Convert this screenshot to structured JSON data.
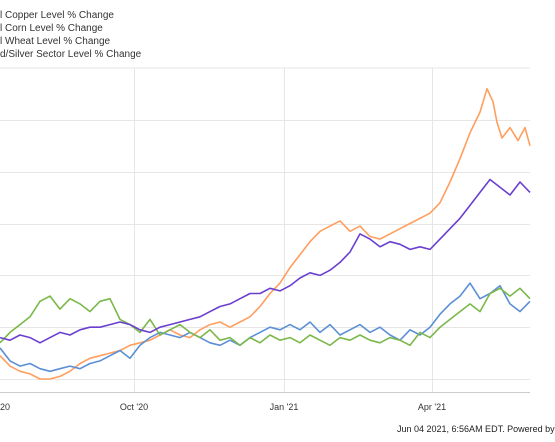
{
  "chart_data": {
    "type": "line",
    "x_ticks": [
      "20",
      "Oct '20",
      "Jan '21",
      "Apr '21"
    ],
    "series": [
      {
        "name": "l Copper Level % Change",
        "color": "#ff9e5e",
        "points": [
          [
            0,
            -6
          ],
          [
            10,
            -10
          ],
          [
            20,
            -12
          ],
          [
            30,
            -13
          ],
          [
            40,
            -15
          ],
          [
            50,
            -15
          ],
          [
            60,
            -14
          ],
          [
            70,
            -12
          ],
          [
            80,
            -9
          ],
          [
            90,
            -7
          ],
          [
            100,
            -6
          ],
          [
            110,
            -5
          ],
          [
            120,
            -4
          ],
          [
            130,
            -2
          ],
          [
            140,
            -1
          ],
          [
            150,
            0
          ],
          [
            160,
            2
          ],
          [
            170,
            4
          ],
          [
            180,
            2
          ],
          [
            190,
            1
          ],
          [
            200,
            4
          ],
          [
            210,
            6
          ],
          [
            220,
            7
          ],
          [
            230,
            5
          ],
          [
            240,
            7
          ],
          [
            250,
            9
          ],
          [
            260,
            13
          ],
          [
            270,
            18
          ],
          [
            280,
            22
          ],
          [
            290,
            28
          ],
          [
            300,
            33
          ],
          [
            310,
            38
          ],
          [
            320,
            42
          ],
          [
            330,
            44
          ],
          [
            340,
            46
          ],
          [
            350,
            42
          ],
          [
            360,
            44
          ],
          [
            370,
            40
          ],
          [
            380,
            39
          ],
          [
            390,
            41
          ],
          [
            400,
            43
          ],
          [
            410,
            45
          ],
          [
            420,
            47
          ],
          [
            430,
            49
          ],
          [
            440,
            53
          ],
          [
            450,
            61
          ],
          [
            460,
            70
          ],
          [
            470,
            80
          ],
          [
            480,
            88
          ],
          [
            487,
            97
          ],
          [
            493,
            92
          ],
          [
            497,
            84
          ],
          [
            502,
            78
          ],
          [
            510,
            82
          ],
          [
            518,
            77
          ],
          [
            525,
            82
          ],
          [
            530,
            75
          ]
        ]
      },
      {
        "name": "l Corn Level % Change",
        "color": "#5b8fd6",
        "points": [
          [
            0,
            -3
          ],
          [
            10,
            -8
          ],
          [
            20,
            -10
          ],
          [
            30,
            -9
          ],
          [
            40,
            -11
          ],
          [
            50,
            -12
          ],
          [
            60,
            -11
          ],
          [
            70,
            -10
          ],
          [
            80,
            -11
          ],
          [
            90,
            -9
          ],
          [
            100,
            -8
          ],
          [
            110,
            -6
          ],
          [
            120,
            -4
          ],
          [
            130,
            -7
          ],
          [
            140,
            -2
          ],
          [
            150,
            1
          ],
          [
            160,
            3
          ],
          [
            170,
            2
          ],
          [
            180,
            1
          ],
          [
            190,
            3
          ],
          [
            200,
            1
          ],
          [
            210,
            -1
          ],
          [
            220,
            -2
          ],
          [
            230,
            0
          ],
          [
            240,
            -2
          ],
          [
            250,
            1
          ],
          [
            260,
            3
          ],
          [
            270,
            5
          ],
          [
            280,
            4
          ],
          [
            290,
            6
          ],
          [
            300,
            4
          ],
          [
            310,
            7
          ],
          [
            320,
            3
          ],
          [
            330,
            6
          ],
          [
            340,
            2
          ],
          [
            350,
            4
          ],
          [
            360,
            6
          ],
          [
            370,
            3
          ],
          [
            380,
            5
          ],
          [
            390,
            2
          ],
          [
            400,
            0
          ],
          [
            410,
            4
          ],
          [
            420,
            2
          ],
          [
            430,
            5
          ],
          [
            440,
            10
          ],
          [
            450,
            14
          ],
          [
            460,
            17
          ],
          [
            470,
            22
          ],
          [
            480,
            16
          ],
          [
            490,
            18
          ],
          [
            500,
            21
          ],
          [
            510,
            14
          ],
          [
            520,
            11
          ],
          [
            530,
            15
          ]
        ]
      },
      {
        "name": "l Wheat Level % Change",
        "color": "#7bb84a",
        "points": [
          [
            0,
            -1
          ],
          [
            10,
            3
          ],
          [
            20,
            6
          ],
          [
            30,
            9
          ],
          [
            40,
            15
          ],
          [
            50,
            17
          ],
          [
            60,
            12
          ],
          [
            70,
            16
          ],
          [
            80,
            14
          ],
          [
            90,
            11
          ],
          [
            100,
            15
          ],
          [
            110,
            16
          ],
          [
            120,
            8
          ],
          [
            130,
            6
          ],
          [
            140,
            3
          ],
          [
            150,
            8
          ],
          [
            160,
            2
          ],
          [
            170,
            4
          ],
          [
            180,
            6
          ],
          [
            190,
            3
          ],
          [
            200,
            1
          ],
          [
            210,
            4
          ],
          [
            220,
            0
          ],
          [
            230,
            1
          ],
          [
            240,
            -2
          ],
          [
            250,
            1
          ],
          [
            260,
            -1
          ],
          [
            270,
            2
          ],
          [
            280,
            0
          ],
          [
            290,
            1
          ],
          [
            300,
            -1
          ],
          [
            310,
            2
          ],
          [
            320,
            0
          ],
          [
            330,
            -2
          ],
          [
            340,
            1
          ],
          [
            350,
            0
          ],
          [
            360,
            2
          ],
          [
            370,
            0
          ],
          [
            380,
            -1
          ],
          [
            390,
            1
          ],
          [
            400,
            0
          ],
          [
            410,
            -2
          ],
          [
            420,
            3
          ],
          [
            430,
            1
          ],
          [
            440,
            5
          ],
          [
            450,
            8
          ],
          [
            460,
            11
          ],
          [
            470,
            14
          ],
          [
            480,
            11
          ],
          [
            490,
            18
          ],
          [
            500,
            20
          ],
          [
            510,
            17
          ],
          [
            520,
            20
          ],
          [
            530,
            16
          ]
        ]
      },
      {
        "name": "d/Silver Sector Level % Change",
        "color": "#6a3fd0",
        "points": [
          [
            0,
            1
          ],
          [
            10,
            0
          ],
          [
            20,
            2
          ],
          [
            30,
            1
          ],
          [
            40,
            -1
          ],
          [
            50,
            1
          ],
          [
            60,
            3
          ],
          [
            70,
            2
          ],
          [
            80,
            4
          ],
          [
            90,
            5
          ],
          [
            100,
            5
          ],
          [
            110,
            6
          ],
          [
            120,
            7
          ],
          [
            130,
            6
          ],
          [
            140,
            4
          ],
          [
            150,
            3
          ],
          [
            160,
            5
          ],
          [
            170,
            6
          ],
          [
            180,
            7
          ],
          [
            190,
            8
          ],
          [
            200,
            9
          ],
          [
            210,
            11
          ],
          [
            220,
            13
          ],
          [
            230,
            14
          ],
          [
            240,
            16
          ],
          [
            250,
            18
          ],
          [
            260,
            18
          ],
          [
            270,
            20
          ],
          [
            280,
            19
          ],
          [
            290,
            21
          ],
          [
            300,
            24
          ],
          [
            310,
            26
          ],
          [
            320,
            25
          ],
          [
            330,
            27
          ],
          [
            340,
            30
          ],
          [
            350,
            34
          ],
          [
            360,
            41
          ],
          [
            370,
            39
          ],
          [
            380,
            36
          ],
          [
            390,
            38
          ],
          [
            400,
            37
          ],
          [
            410,
            35
          ],
          [
            420,
            36
          ],
          [
            430,
            35
          ],
          [
            440,
            39
          ],
          [
            450,
            43
          ],
          [
            460,
            47
          ],
          [
            470,
            52
          ],
          [
            480,
            57
          ],
          [
            490,
            62
          ],
          [
            500,
            59
          ],
          [
            510,
            56
          ],
          [
            520,
            61
          ],
          [
            530,
            57
          ]
        ]
      }
    ]
  },
  "footer": "Jun 04 2021, 6:56AM EDT.  Powered by "
}
